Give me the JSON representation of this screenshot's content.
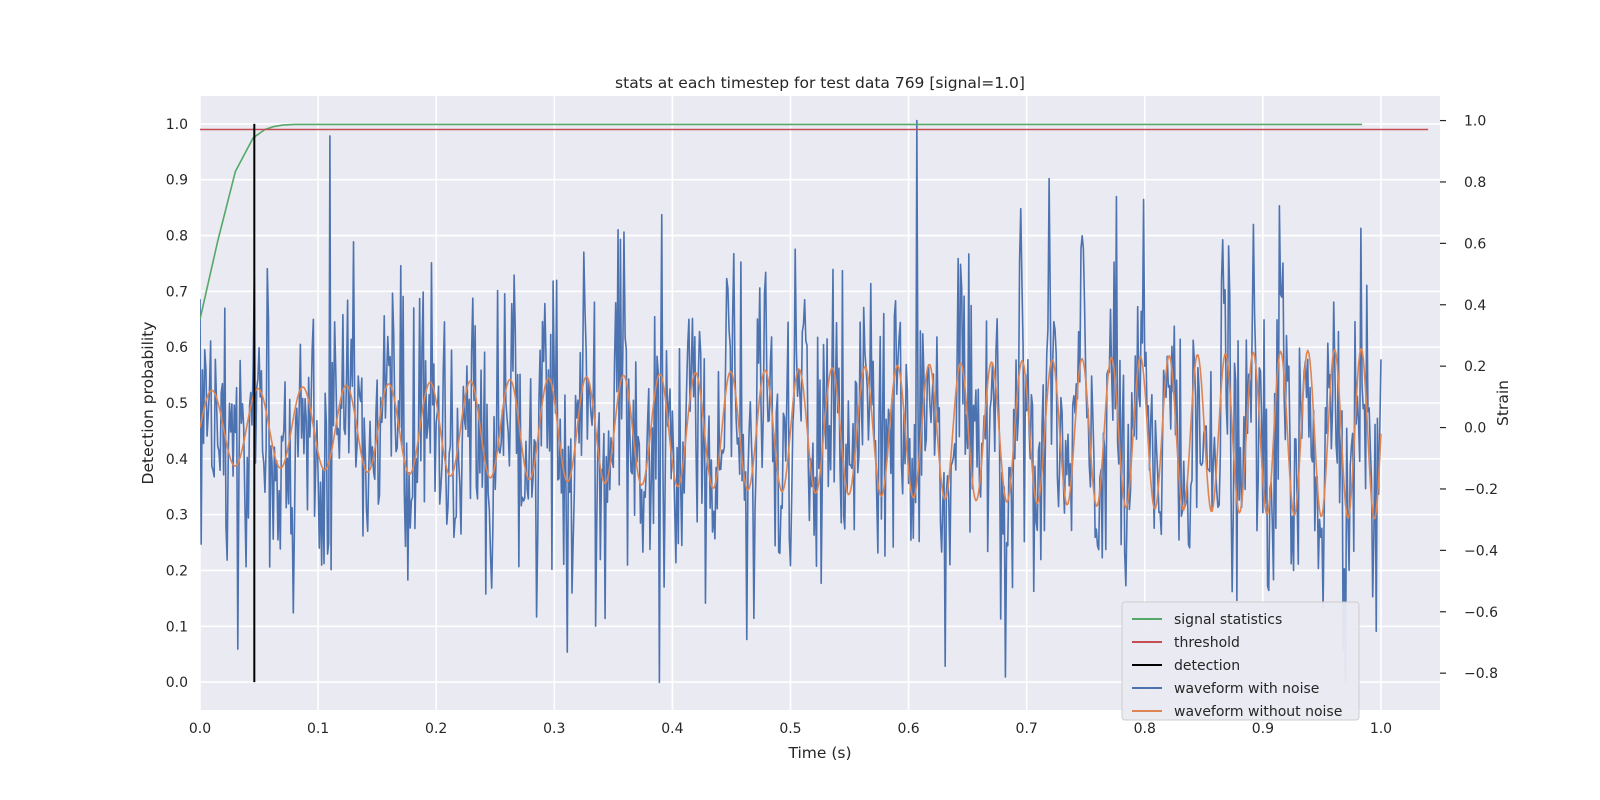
{
  "chart_data": {
    "type": "line",
    "title": "stats at each timestep for test data 769 [signal=1.0]",
    "xlabel": "Time (s)",
    "ylabel_left": "Detection probability",
    "ylabel_right": "Strain",
    "xlim": [
      0.0,
      1.05
    ],
    "ylim_left": [
      -0.05,
      1.05
    ],
    "ylim_right": [
      -0.92,
      1.08
    ],
    "x_ticks": [
      "0.0",
      "0.1",
      "0.2",
      "0.3",
      "0.4",
      "0.5",
      "0.6",
      "0.7",
      "0.8",
      "0.9",
      "1.0"
    ],
    "y_left_ticks": [
      "0.0",
      "0.1",
      "0.2",
      "0.3",
      "0.4",
      "0.5",
      "0.6",
      "0.7",
      "0.8",
      "0.9",
      "1.0"
    ],
    "y_right_ticks": [
      "−0.8",
      "−0.6",
      "−0.4",
      "−0.2",
      "0.0",
      "0.2",
      "0.4",
      "0.6",
      "0.8",
      "1.0"
    ],
    "grid": true,
    "legend_position": "lower-right",
    "colors": {
      "background": "#eaeaf2",
      "grid": "#ffffff",
      "signal_statistics": "#55a868",
      "threshold": "#c44e52",
      "detection": "#000000",
      "waveform_with_noise": "#4c72b0",
      "waveform_without_noise": "#dd8452"
    },
    "legend": [
      "signal statistics",
      "threshold",
      "detection",
      "waveform with noise",
      "waveform without noise"
    ],
    "series": [
      {
        "name": "signal statistics",
        "axis": "left",
        "x": [
          0.0,
          0.015,
          0.03,
          0.045,
          0.055,
          0.062,
          0.07,
          0.08,
          0.1,
          0.2,
          0.3,
          0.4,
          0.5,
          0.6,
          0.7,
          0.8,
          0.9,
          0.984
        ],
        "y": [
          0.65,
          0.79,
          0.915,
          0.975,
          0.99,
          0.995,
          0.998,
          0.999,
          0.999,
          0.999,
          0.999,
          0.999,
          0.999,
          0.999,
          0.999,
          0.999,
          0.999,
          0.999
        ]
      },
      {
        "name": "threshold",
        "axis": "left",
        "x": [
          0.0,
          1.04
        ],
        "y": [
          0.99,
          0.99
        ]
      },
      {
        "name": "detection",
        "axis": "left",
        "x": [
          0.046,
          0.046
        ],
        "y": [
          0.0,
          1.0
        ]
      },
      {
        "name": "waveform with noise",
        "axis": "right",
        "generated": "noisy strain sampled at ~1000 points over 0-1.0 s; amplitude range about -0.83 to 1.0 (peaks near x=0.11 (0.95) and x=0.607 (1.0), minimum near x=0.389 (-0.83))",
        "amplitude_std": 0.22,
        "min": -0.83,
        "max": 1.0
      },
      {
        "name": "waveform without noise",
        "axis": "right",
        "generated": "chirp sinusoid from 0-1.0 s, amplitude growing from ~0.12 to ~0.28, frequency increasing from ~25 Hz to ~45 Hz",
        "amplitude_start": 0.12,
        "amplitude_end": 0.28,
        "freq_start_hz": 25,
        "freq_end_hz": 45
      }
    ]
  }
}
